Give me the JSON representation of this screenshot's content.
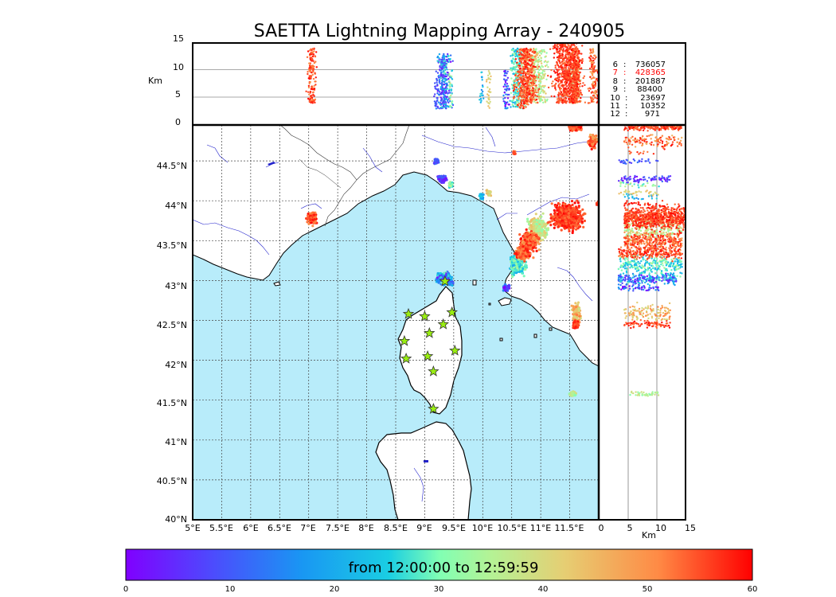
{
  "title": "SAETTA Lightning Mapping Array - 240905",
  "alt_panel": {
    "unit": "Km",
    "yticks": [
      "0",
      "5",
      "10",
      "15"
    ]
  },
  "map": {
    "xticks": [
      "5°E",
      "5.5°E",
      "6°E",
      "6.5°E",
      "7°E",
      "7.5°E",
      "8°E",
      "8.5°E",
      "9°E",
      "9.5°E",
      "10°E",
      "10.5°E",
      "11°E",
      "11.5°E"
    ],
    "yticks": [
      "40°N",
      "40.5°N",
      "41°N",
      "41.5°N",
      "42°N",
      "42.5°N",
      "43°N",
      "43.5°N",
      "44°N",
      "44.5°N"
    ],
    "lon_range": [
      5,
      12
    ],
    "lat_range": [
      40,
      44.95
    ]
  },
  "side_panel": {
    "unit": "Km",
    "xticks": [
      "0",
      "5",
      "10",
      "15"
    ]
  },
  "station_counts": [
    {
      "stations": "6",
      "sep": ":",
      "count": "736057",
      "highlight": false
    },
    {
      "stations": "7",
      "sep": ":",
      "count": "428365",
      "highlight": true
    },
    {
      "stations": "8",
      "sep": ":",
      "count": "201887",
      "highlight": false
    },
    {
      "stations": "9",
      "sep": ":",
      "count": "88400",
      "highlight": false
    },
    {
      "stations": "10",
      "sep": ":",
      "count": "23697",
      "highlight": false
    },
    {
      "stations": "11",
      "sep": ":",
      "count": "10352",
      "highlight": false
    },
    {
      "stations": "12",
      "sep": ":",
      "count": "971",
      "highlight": false
    }
  ],
  "colorbar": {
    "label": "from 12:00:00 to 12:59:59",
    "ticks": [
      "0",
      "10",
      "20",
      "30",
      "40",
      "50",
      "60"
    ],
    "colormap": "rainbow",
    "range": [
      0,
      60
    ]
  },
  "colors": {
    "sea": "#b8ecfa",
    "land": "#ffffff",
    "rivers": "#2222cc",
    "borders": "#333333",
    "highlight": "#ff0000",
    "station_fill": "#99ee11"
  },
  "chart_data": {
    "type": "scatter",
    "title": "SAETTA Lightning Mapping Array - 240905",
    "xlim": [
      5,
      12
    ],
    "ylim": [
      40,
      44.95
    ],
    "altitude_range_km": [
      0,
      15
    ],
    "color_variable": "time (minutes past 12:00:00)",
    "color_range": [
      0,
      60
    ],
    "stations": [
      {
        "lon": 8.72,
        "lat": 42.58
      },
      {
        "lon": 9.0,
        "lat": 42.55
      },
      {
        "lon": 9.32,
        "lat": 42.45
      },
      {
        "lon": 9.47,
        "lat": 42.6
      },
      {
        "lon": 9.35,
        "lat": 42.99
      },
      {
        "lon": 9.08,
        "lat": 42.34
      },
      {
        "lon": 8.65,
        "lat": 42.24
      },
      {
        "lon": 8.68,
        "lat": 42.02
      },
      {
        "lon": 9.05,
        "lat": 42.05
      },
      {
        "lon": 9.15,
        "lat": 41.86
      },
      {
        "lon": 9.52,
        "lat": 42.12
      },
      {
        "lon": 9.15,
        "lat": 41.39
      }
    ],
    "clusters": [
      {
        "lon": 7.05,
        "lat": 43.78,
        "dlon": 0.1,
        "dlat": 0.1,
        "t": [
          50,
          60
        ],
        "alt": [
          4,
          14
        ],
        "n": 140
      },
      {
        "lon": 9.3,
        "lat": 44.27,
        "dlon": 0.1,
        "dlat": 0.07,
        "t": [
          0,
          12
        ],
        "alt": [
          3,
          12
        ],
        "n": 80
      },
      {
        "lon": 9.2,
        "lat": 44.49,
        "dlon": 0.06,
        "dlat": 0.05,
        "t": [
          6,
          14
        ],
        "alt": [
          3,
          10
        ],
        "n": 30
      },
      {
        "lon": 9.45,
        "lat": 44.2,
        "dlon": 0.06,
        "dlat": 0.05,
        "t": [
          25,
          40
        ],
        "alt": [
          3,
          10
        ],
        "n": 25
      },
      {
        "lon": 10.1,
        "lat": 44.1,
        "dlon": 0.07,
        "dlat": 0.06,
        "t": [
          38,
          45
        ],
        "alt": [
          3,
          10
        ],
        "n": 30
      },
      {
        "lon": 9.98,
        "lat": 44.05,
        "dlon": 0.05,
        "dlat": 0.05,
        "t": [
          15,
          28
        ],
        "alt": [
          3,
          10
        ],
        "n": 20
      },
      {
        "lon": 9.35,
        "lat": 43.02,
        "dlon": 0.18,
        "dlat": 0.1,
        "t": [
          0,
          30
        ],
        "alt": [
          3,
          13
        ],
        "n": 220
      },
      {
        "lon": 11.45,
        "lat": 43.8,
        "dlon": 0.35,
        "dlat": 0.22,
        "t": [
          52,
          60
        ],
        "alt": [
          4,
          15
        ],
        "n": 650
      },
      {
        "lon": 10.95,
        "lat": 43.65,
        "dlon": 0.25,
        "dlat": 0.2,
        "t": [
          30,
          45
        ],
        "alt": [
          4,
          14
        ],
        "n": 260
      },
      {
        "lon": 10.8,
        "lat": 43.5,
        "dlon": 0.2,
        "dlat": 0.15,
        "t": [
          48,
          60
        ],
        "alt": [
          4,
          14
        ],
        "n": 300
      },
      {
        "lon": 10.6,
        "lat": 43.2,
        "dlon": 0.18,
        "dlat": 0.18,
        "t": [
          20,
          35
        ],
        "alt": [
          3,
          14
        ],
        "n": 260
      },
      {
        "lon": 10.7,
        "lat": 43.35,
        "dlon": 0.18,
        "dlat": 0.12,
        "t": [
          50,
          60
        ],
        "alt": [
          3,
          14
        ],
        "n": 250
      },
      {
        "lon": 10.4,
        "lat": 42.9,
        "dlon": 0.08,
        "dlat": 0.06,
        "t": [
          0,
          18
        ],
        "alt": [
          3,
          10
        ],
        "n": 60
      },
      {
        "lon": 11.6,
        "lat": 44.92,
        "dlon": 0.14,
        "dlat": 0.05,
        "t": [
          50,
          60
        ],
        "alt": [
          4,
          14
        ],
        "n": 180
      },
      {
        "lon": 11.9,
        "lat": 44.75,
        "dlon": 0.1,
        "dlat": 0.12,
        "t": [
          45,
          60
        ],
        "alt": [
          4,
          14
        ],
        "n": 120
      },
      {
        "lon": 11.62,
        "lat": 42.6,
        "dlon": 0.1,
        "dlat": 0.15,
        "t": [
          38,
          52
        ],
        "alt": [
          4,
          12
        ],
        "n": 120
      },
      {
        "lon": 11.6,
        "lat": 42.45,
        "dlon": 0.06,
        "dlat": 0.06,
        "t": [
          52,
          60
        ],
        "alt": [
          4,
          12
        ],
        "n": 80
      },
      {
        "lon": 11.55,
        "lat": 41.58,
        "dlon": 0.07,
        "dlat": 0.04,
        "t": [
          30,
          40
        ],
        "alt": [
          5,
          10
        ],
        "n": 40
      },
      {
        "lon": 11.98,
        "lat": 43.96,
        "dlon": 0.03,
        "dlat": 0.03,
        "t": [
          55,
          60
        ],
        "alt": [
          4,
          10
        ],
        "n": 15
      },
      {
        "lon": 10.55,
        "lat": 44.6,
        "dlon": 0.03,
        "dlat": 0.03,
        "t": [
          50,
          58
        ],
        "alt": [
          4,
          10
        ],
        "n": 10
      }
    ]
  }
}
